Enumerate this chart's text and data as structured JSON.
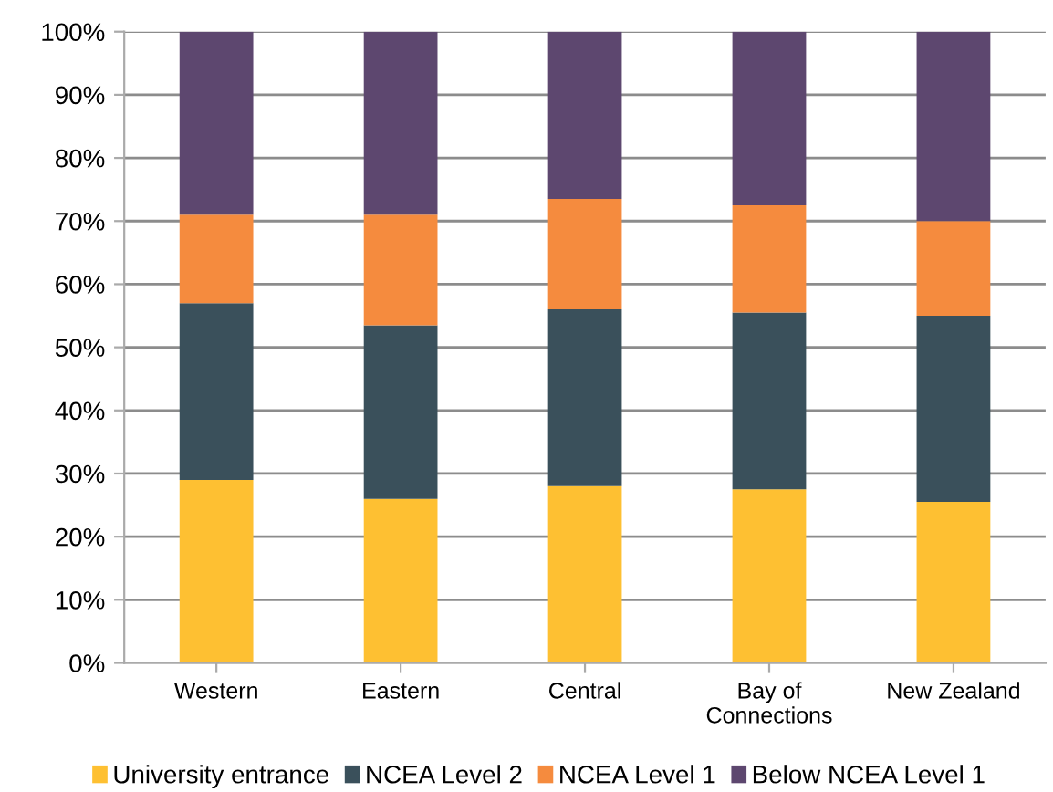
{
  "chart_data": {
    "type": "bar",
    "stacked": true,
    "categories": [
      "Western",
      "Eastern",
      "Central",
      "Bay of\nConnections",
      "New Zealand"
    ],
    "series": [
      {
        "name": "University entrance",
        "color": "#fec032",
        "values": [
          29,
          26,
          28,
          27.5,
          25.5
        ]
      },
      {
        "name": "NCEA Level 2",
        "color": "#3a505b",
        "values": [
          28,
          27.5,
          28,
          28,
          29.5
        ]
      },
      {
        "name": "NCEA Level 1",
        "color": "#f58b3e",
        "values": [
          14,
          17.5,
          17.5,
          17,
          15
        ]
      },
      {
        "name": "Below NCEA Level 1",
        "color": "#5d476f",
        "values": [
          29,
          29,
          26.5,
          27.5,
          30
        ]
      }
    ],
    "ylim": [
      0,
      100
    ],
    "yticks": [
      {
        "value": 0,
        "label": "0%"
      },
      {
        "value": 10,
        "label": "10%"
      },
      {
        "value": 20,
        "label": "20%"
      },
      {
        "value": 30,
        "label": "30%"
      },
      {
        "value": 40,
        "label": "40%"
      },
      {
        "value": 50,
        "label": "50%"
      },
      {
        "value": 60,
        "label": "60%"
      },
      {
        "value": 70,
        "label": "70%"
      },
      {
        "value": 80,
        "label": "80%"
      },
      {
        "value": 90,
        "label": "90%"
      },
      {
        "value": 100,
        "label": "100%"
      }
    ],
    "grid": "y",
    "legend": "bottom"
  }
}
